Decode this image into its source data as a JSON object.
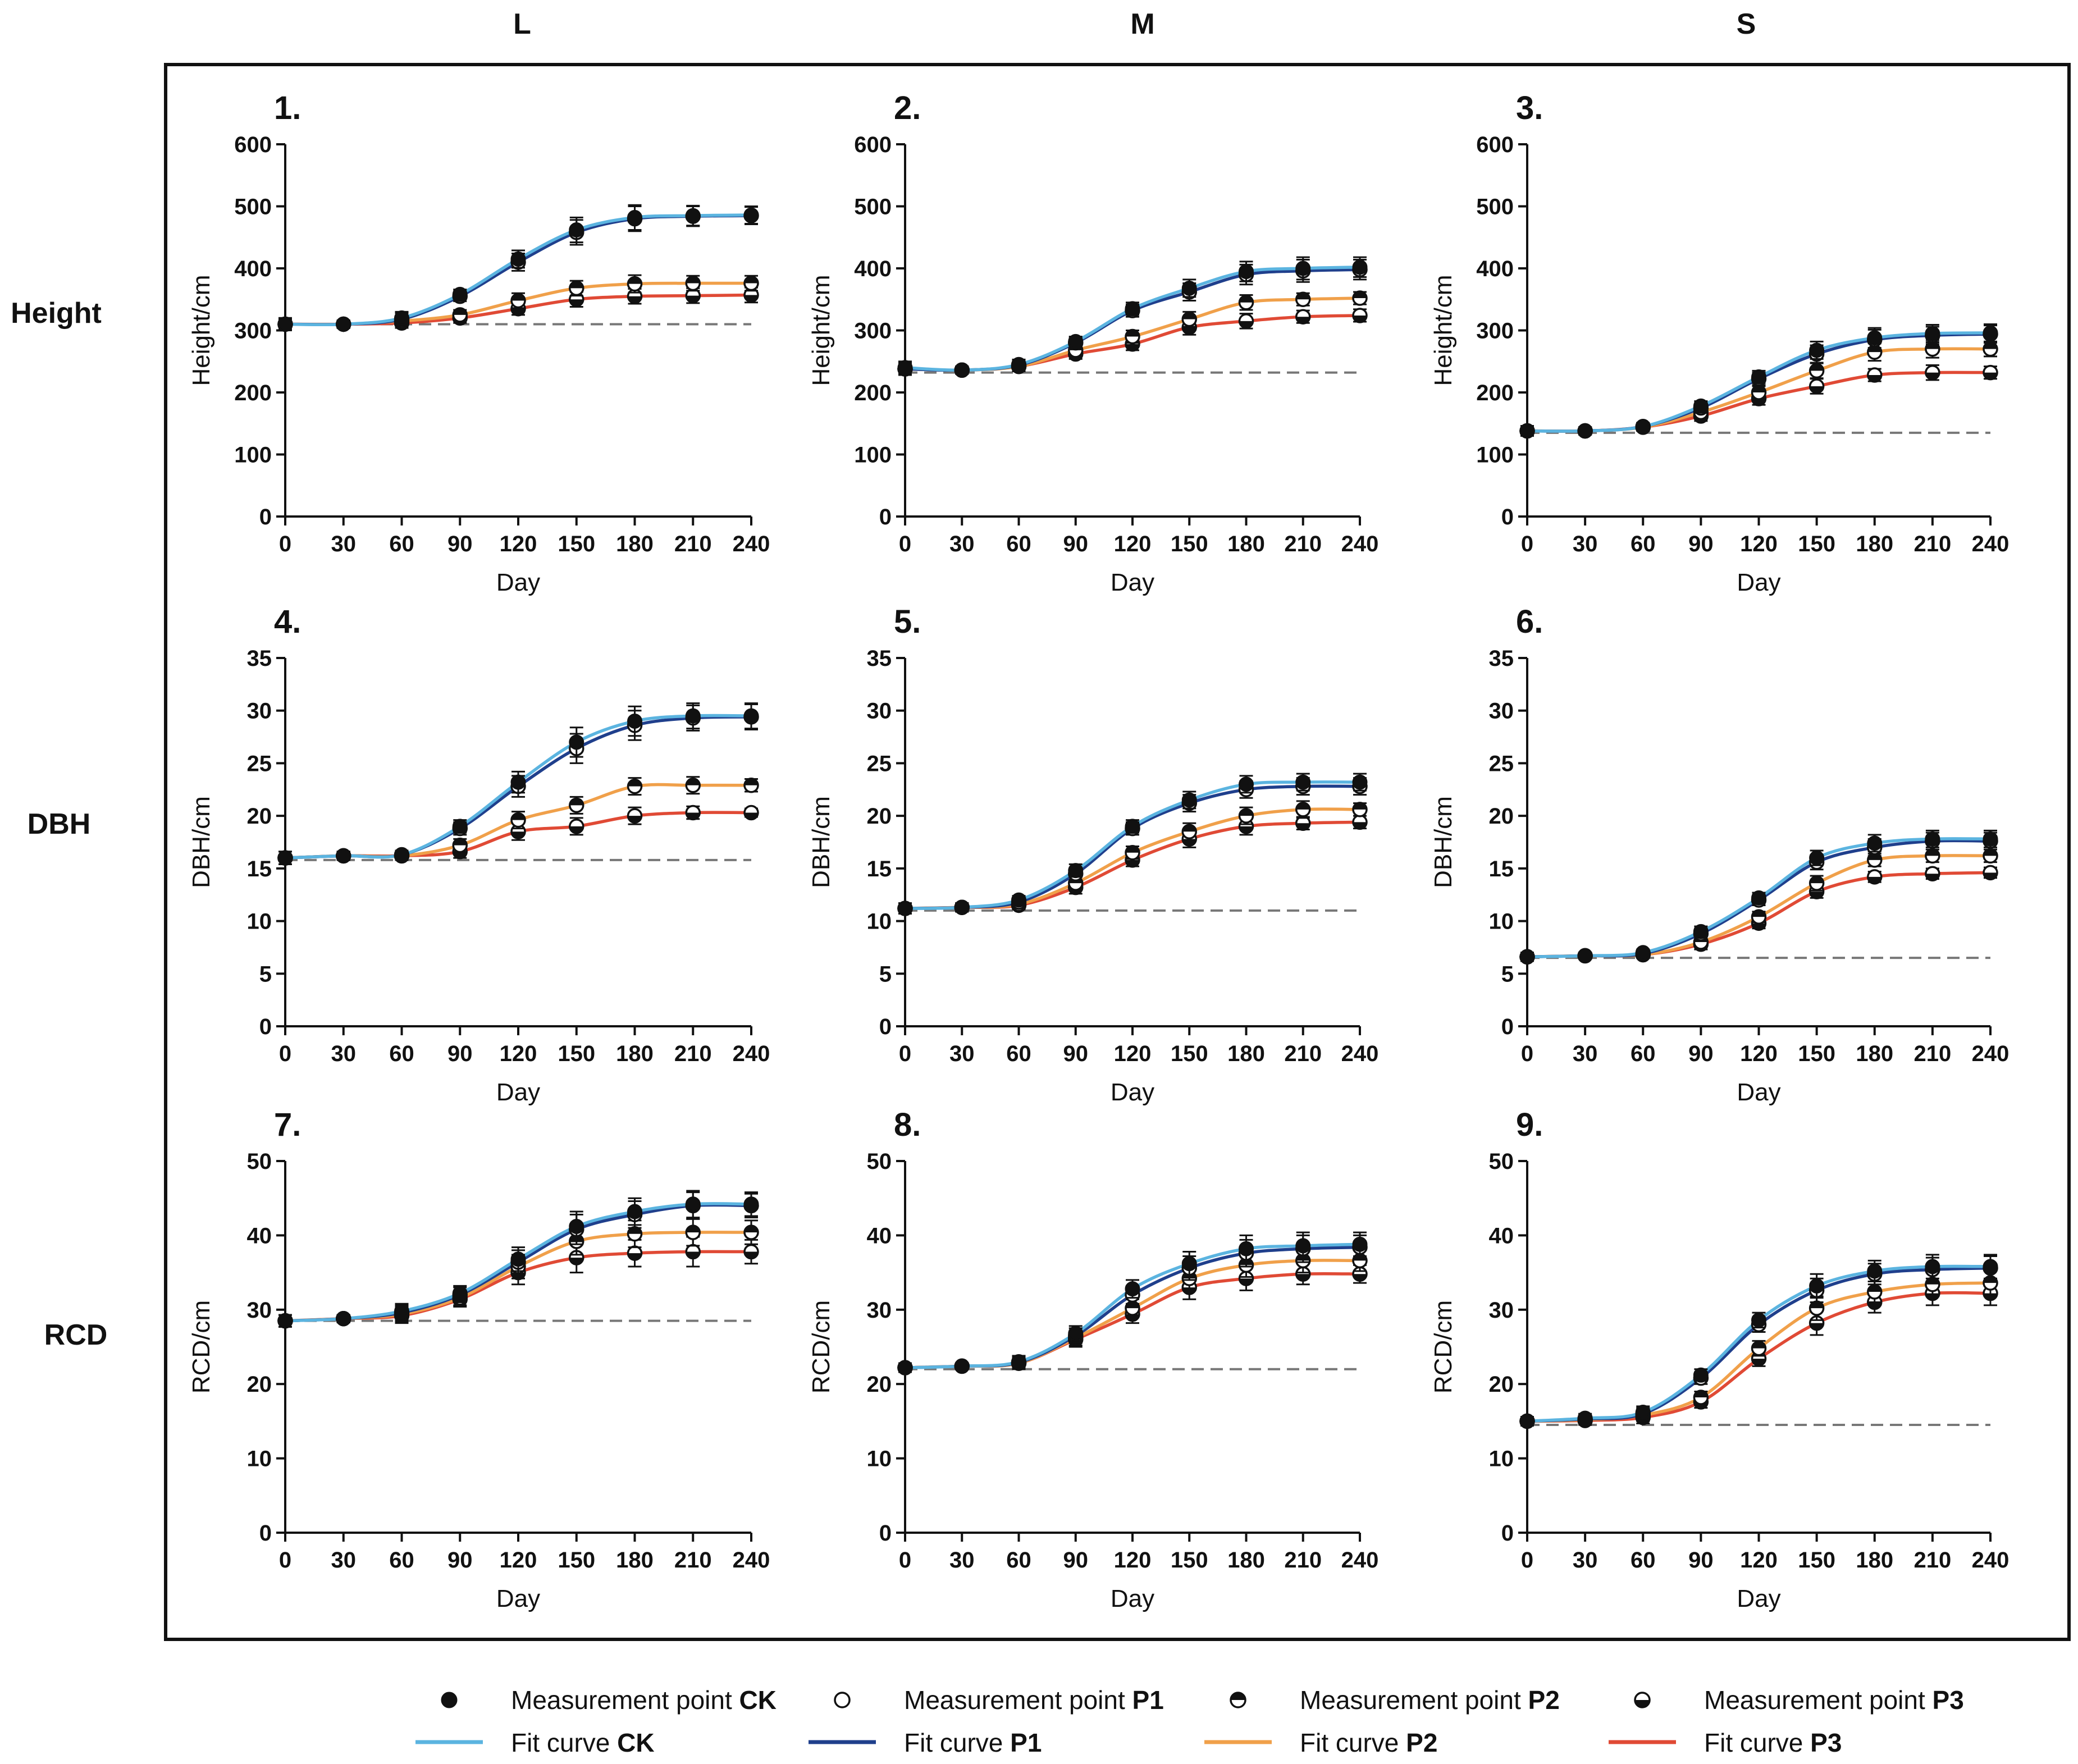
{
  "columns": [
    "L",
    "M",
    "S"
  ],
  "rows": [
    "Height",
    "DBH",
    "RCD"
  ],
  "legend": {
    "measurement_prefix": "Measurement point",
    "fit_prefix": "Fit curve",
    "items": [
      {
        "treatment": "CK",
        "marker": "filled",
        "curve_color": "#5bb4e0"
      },
      {
        "treatment": "P1",
        "marker": "open",
        "curve_color": "#1f3f8c"
      },
      {
        "treatment": "P2",
        "marker": "half-top",
        "curve_color": "#f0a04a"
      },
      {
        "treatment": "P3",
        "marker": "half-bottom",
        "curve_color": "#e04a35"
      }
    ]
  },
  "chart_data": [
    {
      "panel": "1.",
      "type": "line",
      "column": "L",
      "row": "Height",
      "xlabel": "Day",
      "ylabel": "Height/cm",
      "x": [
        0,
        30,
        60,
        90,
        120,
        150,
        180,
        210,
        240
      ],
      "ylim": [
        0,
        600
      ],
      "yticks": [
        0,
        100,
        200,
        300,
        400,
        500,
        600
      ],
      "baseline": 310,
      "series": [
        {
          "name": "CK",
          "values": [
            310,
            310,
            320,
            358,
            415,
            462,
            482,
            485,
            486
          ],
          "err": [
            10,
            6,
            10,
            8,
            14,
            20,
            20,
            16,
            14
          ]
        },
        {
          "name": "P1",
          "values": [
            310,
            310,
            318,
            355,
            410,
            458,
            480,
            484,
            485
          ],
          "err": [
            10,
            6,
            10,
            8,
            14,
            20,
            20,
            16,
            14
          ]
        },
        {
          "name": "P2",
          "values": [
            310,
            310,
            315,
            325,
            348,
            368,
            375,
            376,
            376
          ],
          "err": [
            8,
            6,
            8,
            8,
            12,
            12,
            14,
            12,
            12
          ]
        },
        {
          "name": "P3",
          "values": [
            310,
            310,
            312,
            320,
            335,
            350,
            355,
            356,
            357
          ],
          "err": [
            8,
            6,
            8,
            8,
            10,
            12,
            12,
            12,
            12
          ]
        }
      ]
    },
    {
      "panel": "2.",
      "type": "line",
      "column": "M",
      "row": "Height",
      "xlabel": "Day",
      "ylabel": "Height/cm",
      "x": [
        0,
        30,
        60,
        90,
        120,
        150,
        180,
        210,
        240
      ],
      "ylim": [
        0,
        600
      ],
      "yticks": [
        0,
        100,
        200,
        300,
        400,
        500,
        600
      ],
      "baseline": 232,
      "series": [
        {
          "name": "CK",
          "values": [
            240,
            236,
            245,
            282,
            335,
            368,
            395,
            400,
            402
          ],
          "err": [
            10,
            6,
            8,
            8,
            10,
            14,
            16,
            18,
            16
          ]
        },
        {
          "name": "P1",
          "values": [
            238,
            236,
            244,
            280,
            332,
            362,
            390,
            396,
            398
          ],
          "err": [
            10,
            6,
            8,
            8,
            10,
            14,
            16,
            18,
            16
          ]
        },
        {
          "name": "P2",
          "values": [
            238,
            236,
            242,
            268,
            290,
            318,
            345,
            350,
            352
          ],
          "err": [
            8,
            6,
            8,
            8,
            10,
            12,
            12,
            10,
            10
          ]
        },
        {
          "name": "P3",
          "values": [
            238,
            236,
            242,
            262,
            278,
            305,
            315,
            322,
            324
          ],
          "err": [
            8,
            6,
            8,
            8,
            10,
            12,
            12,
            10,
            10
          ]
        }
      ]
    },
    {
      "panel": "3.",
      "type": "line",
      "column": "S",
      "row": "Height",
      "xlabel": "Day",
      "ylabel": "Height/cm",
      "x": [
        0,
        30,
        60,
        90,
        120,
        150,
        180,
        210,
        240
      ],
      "ylim": [
        0,
        600
      ],
      "yticks": [
        0,
        100,
        200,
        300,
        400,
        500,
        600
      ],
      "baseline": 135,
      "series": [
        {
          "name": "CK",
          "values": [
            138,
            138,
            145,
            178,
            225,
            268,
            288,
            295,
            296
          ],
          "err": [
            8,
            6,
            6,
            8,
            10,
            14,
            16,
            14,
            14
          ]
        },
        {
          "name": "P1",
          "values": [
            138,
            138,
            145,
            175,
            222,
            262,
            285,
            292,
            294
          ],
          "err": [
            8,
            6,
            6,
            8,
            10,
            14,
            16,
            14,
            14
          ]
        },
        {
          "name": "P2",
          "values": [
            138,
            138,
            144,
            168,
            200,
            235,
            265,
            270,
            270
          ],
          "err": [
            8,
            6,
            6,
            8,
            10,
            12,
            14,
            14,
            12
          ]
        },
        {
          "name": "P3",
          "values": [
            138,
            138,
            144,
            162,
            190,
            210,
            228,
            232,
            232
          ],
          "err": [
            8,
            6,
            6,
            8,
            10,
            12,
            10,
            12,
            10
          ]
        }
      ]
    },
    {
      "panel": "4.",
      "type": "line",
      "column": "L",
      "row": "DBH",
      "xlabel": "Day",
      "ylabel": "DBH/cm",
      "x": [
        0,
        30,
        60,
        90,
        120,
        150,
        180,
        210,
        240
      ],
      "ylim": [
        0,
        35
      ],
      "yticks": [
        0,
        5,
        10,
        15,
        20,
        25,
        30,
        35
      ],
      "baseline": 15.8,
      "series": [
        {
          "name": "CK",
          "values": [
            16,
            16.2,
            16.3,
            19,
            23.2,
            27,
            29,
            29.5,
            29.5
          ],
          "err": [
            0.6,
            0.4,
            0.4,
            0.6,
            1.0,
            1.4,
            1.4,
            1.2,
            1.2
          ]
        },
        {
          "name": "P1",
          "values": [
            16,
            16.2,
            16.3,
            18.8,
            22.8,
            26.4,
            28.6,
            29.3,
            29.4
          ],
          "err": [
            0.6,
            0.4,
            0.4,
            0.6,
            1.0,
            1.4,
            1.4,
            1.2,
            1.2
          ]
        },
        {
          "name": "P2",
          "values": [
            16,
            16.2,
            16.2,
            17.2,
            19.6,
            21,
            22.8,
            22.9,
            22.9
          ],
          "err": [
            0.6,
            0.4,
            0.4,
            0.6,
            0.8,
            0.8,
            0.8,
            0.8,
            0.6
          ]
        },
        {
          "name": "P3",
          "values": [
            16,
            16.2,
            16.2,
            16.6,
            18.5,
            19,
            20,
            20.3,
            20.3
          ],
          "err": [
            0.6,
            0.4,
            0.4,
            0.6,
            0.8,
            0.8,
            0.8,
            0.6,
            0.4
          ]
        }
      ]
    },
    {
      "panel": "5.",
      "type": "line",
      "column": "M",
      "row": "DBH",
      "xlabel": "Day",
      "ylabel": "DBH/cm",
      "x": [
        0,
        30,
        60,
        90,
        120,
        150,
        180,
        210,
        240
      ],
      "ylim": [
        0,
        35
      ],
      "yticks": [
        0,
        5,
        10,
        15,
        20,
        25,
        30,
        35
      ],
      "baseline": 11,
      "series": [
        {
          "name": "CK",
          "values": [
            11.2,
            11.3,
            12,
            14.8,
            19,
            21.5,
            23,
            23.2,
            23.2
          ],
          "err": [
            0.5,
            0.4,
            0.4,
            0.6,
            0.6,
            0.8,
            0.8,
            0.8,
            0.8
          ]
        },
        {
          "name": "P1",
          "values": [
            11.2,
            11.3,
            11.8,
            14.5,
            18.8,
            21.2,
            22.5,
            22.8,
            22.8
          ],
          "err": [
            0.5,
            0.4,
            0.4,
            0.6,
            0.6,
            0.8,
            0.8,
            0.8,
            0.8
          ]
        },
        {
          "name": "P2",
          "values": [
            11.2,
            11.3,
            11.6,
            13.6,
            16.5,
            18.5,
            20,
            20.6,
            20.6
          ],
          "err": [
            0.5,
            0.4,
            0.4,
            0.6,
            0.6,
            0.8,
            0.8,
            0.8,
            0.6
          ]
        },
        {
          "name": "P3",
          "values": [
            11.2,
            11.3,
            11.5,
            13.2,
            15.8,
            17.8,
            19,
            19.3,
            19.4
          ],
          "err": [
            0.5,
            0.4,
            0.4,
            0.6,
            0.6,
            0.8,
            0.8,
            0.6,
            0.6
          ]
        }
      ]
    },
    {
      "panel": "6.",
      "type": "line",
      "column": "S",
      "row": "DBH",
      "xlabel": "Day",
      "ylabel": "DBH/cm",
      "x": [
        0,
        30,
        60,
        90,
        120,
        150,
        180,
        210,
        240
      ],
      "ylim": [
        0,
        35
      ],
      "yticks": [
        0,
        5,
        10,
        15,
        20,
        25,
        30,
        35
      ],
      "baseline": 6.5,
      "series": [
        {
          "name": "CK",
          "values": [
            6.6,
            6.7,
            7,
            9,
            12.2,
            16,
            17.4,
            17.8,
            17.8
          ],
          "err": [
            0.4,
            0.3,
            0.3,
            0.5,
            0.5,
            0.7,
            0.8,
            0.8,
            0.8
          ]
        },
        {
          "name": "P1",
          "values": [
            6.6,
            6.7,
            6.9,
            8.8,
            12,
            15.6,
            17,
            17.6,
            17.6
          ],
          "err": [
            0.4,
            0.3,
            0.3,
            0.5,
            0.5,
            0.7,
            0.8,
            0.8,
            0.8
          ]
        },
        {
          "name": "P2",
          "values": [
            6.6,
            6.7,
            6.8,
            8,
            10.4,
            13.6,
            15.8,
            16.2,
            16.2
          ],
          "err": [
            0.4,
            0.3,
            0.3,
            0.5,
            0.5,
            0.7,
            0.6,
            0.6,
            0.6
          ]
        },
        {
          "name": "P3",
          "values": [
            6.6,
            6.7,
            6.8,
            7.8,
            9.8,
            12.8,
            14.2,
            14.5,
            14.6
          ],
          "err": [
            0.4,
            0.3,
            0.3,
            0.5,
            0.5,
            0.6,
            0.5,
            0.5,
            0.5
          ]
        }
      ]
    },
    {
      "panel": "7.",
      "type": "line",
      "column": "L",
      "row": "RCD",
      "xlabel": "Day",
      "ylabel": "RCD/cm",
      "x": [
        0,
        30,
        60,
        90,
        120,
        150,
        180,
        210,
        240
      ],
      "ylim": [
        0,
        50
      ],
      "yticks": [
        0,
        10,
        20,
        30,
        40,
        50
      ],
      "baseline": 28.5,
      "series": [
        {
          "name": "CK",
          "values": [
            28.5,
            28.8,
            29.8,
            32.2,
            36.8,
            41.2,
            43.2,
            44.2,
            44.2
          ],
          "err": [
            0.8,
            0.5,
            1.0,
            1.0,
            1.6,
            2.0,
            1.8,
            1.8,
            1.6
          ]
        },
        {
          "name": "P1",
          "values": [
            28.5,
            28.8,
            29.6,
            32,
            36.4,
            40.8,
            42.8,
            44,
            44
          ],
          "err": [
            0.8,
            0.5,
            1.0,
            1.0,
            1.6,
            2.0,
            1.8,
            1.8,
            1.6
          ]
        },
        {
          "name": "P2",
          "values": [
            28.5,
            28.8,
            29.4,
            31.6,
            35.8,
            39.2,
            40.2,
            40.4,
            40.4
          ],
          "err": [
            0.8,
            0.5,
            1.0,
            1.0,
            1.6,
            1.8,
            1.8,
            1.8,
            1.6
          ]
        },
        {
          "name": "P3",
          "values": [
            28.5,
            28.8,
            29.2,
            31.4,
            35,
            37,
            37.6,
            37.8,
            37.8
          ],
          "err": [
            0.8,
            0.5,
            1.0,
            1.0,
            1.6,
            2.0,
            1.8,
            2.0,
            1.6
          ]
        }
      ]
    },
    {
      "panel": "8.",
      "type": "line",
      "column": "M",
      "row": "RCD",
      "xlabel": "Day",
      "ylabel": "RCD/cm",
      "x": [
        0,
        30,
        60,
        90,
        120,
        150,
        180,
        210,
        240
      ],
      "ylim": [
        0,
        50
      ],
      "yticks": [
        0,
        10,
        20,
        30,
        40,
        50
      ],
      "baseline": 22,
      "series": [
        {
          "name": "CK",
          "values": [
            22.2,
            22.4,
            23,
            26.8,
            32.8,
            36.2,
            38.2,
            38.6,
            38.8
          ],
          "err": [
            0.6,
            0.4,
            0.8,
            1.0,
            1.2,
            1.6,
            1.8,
            1.8,
            1.6
          ]
        },
        {
          "name": "P1",
          "values": [
            22.2,
            22.4,
            22.9,
            26.5,
            32,
            35.6,
            37.6,
            38.2,
            38.4
          ],
          "err": [
            0.6,
            0.4,
            0.8,
            1.0,
            1.2,
            1.6,
            1.8,
            1.8,
            1.6
          ]
        },
        {
          "name": "P2",
          "values": [
            22.2,
            22.4,
            22.8,
            26.2,
            30.2,
            34.2,
            36,
            36.6,
            36.6
          ],
          "err": [
            0.6,
            0.4,
            0.8,
            1.0,
            1.2,
            1.6,
            1.6,
            1.6,
            1.4
          ]
        },
        {
          "name": "P3",
          "values": [
            22.2,
            22.4,
            22.8,
            26,
            29.4,
            33,
            34.2,
            34.8,
            34.8
          ],
          "err": [
            0.6,
            0.4,
            0.8,
            1.0,
            1.2,
            1.6,
            1.6,
            1.4,
            1.2
          ]
        }
      ]
    },
    {
      "panel": "9.",
      "type": "line",
      "column": "S",
      "row": "RCD",
      "xlabel": "Day",
      "ylabel": "RCD/cm",
      "x": [
        0,
        30,
        60,
        90,
        120,
        150,
        180,
        210,
        240
      ],
      "ylim": [
        0,
        50
      ],
      "yticks": [
        0,
        10,
        20,
        30,
        40,
        50
      ],
      "baseline": 14.5,
      "series": [
        {
          "name": "CK",
          "values": [
            15,
            15.4,
            16.2,
            21.2,
            28.6,
            33.2,
            35.2,
            35.8,
            35.8
          ],
          "err": [
            0.6,
            0.6,
            0.8,
            0.8,
            1.0,
            1.6,
            1.4,
            1.6,
            1.6
          ]
        },
        {
          "name": "P1",
          "values": [
            15,
            15.3,
            16,
            20.8,
            28,
            32.6,
            34.8,
            35.4,
            35.6
          ],
          "err": [
            0.6,
            0.6,
            0.8,
            0.8,
            1.0,
            1.6,
            1.4,
            1.6,
            1.6
          ]
        },
        {
          "name": "P2",
          "values": [
            15,
            15.2,
            15.8,
            18.2,
            24.8,
            30.2,
            32.4,
            33.4,
            33.6
          ],
          "err": [
            0.6,
            0.6,
            0.8,
            0.8,
            1.0,
            1.6,
            1.4,
            1.6,
            1.6
          ]
        },
        {
          "name": "P3",
          "values": [
            15,
            15.1,
            15.5,
            17.6,
            23.4,
            28.2,
            31,
            32.2,
            32.2
          ],
          "err": [
            0.6,
            0.6,
            0.8,
            0.8,
            1.0,
            1.6,
            1.4,
            1.6,
            1.6
          ]
        }
      ]
    }
  ]
}
